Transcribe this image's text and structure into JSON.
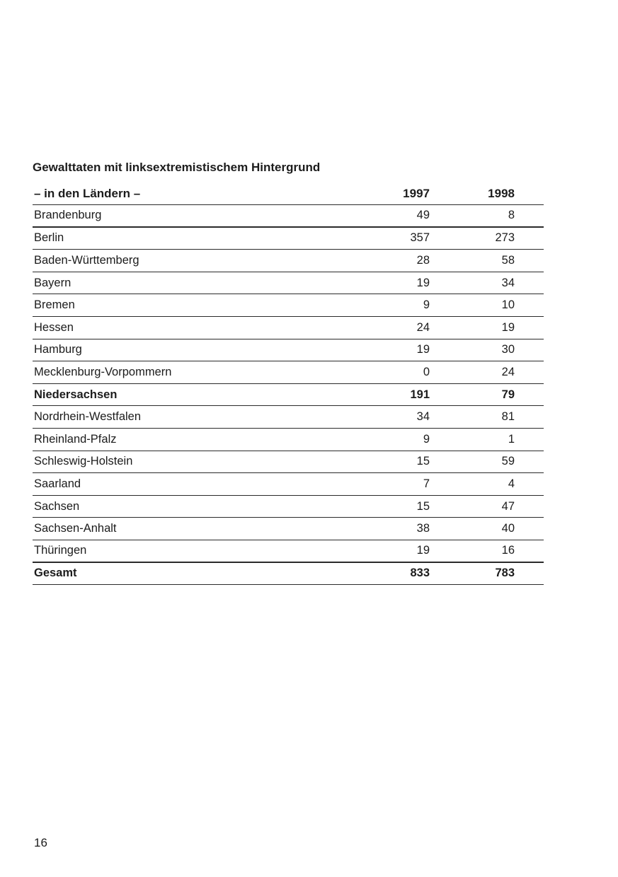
{
  "document": {
    "title_line1": "Gewalttaten mit linksextremistischem Hintergrund",
    "page_number": "16"
  },
  "table": {
    "header": {
      "label": "– in den Ländern –",
      "col_1997": "1997",
      "col_1998": "1998"
    },
    "rows": [
      {
        "state": "Brandenburg",
        "v1997": "49",
        "v1998": "8",
        "emphasis": false
      },
      {
        "state": "Berlin",
        "v1997": "357",
        "v1998": "273",
        "emphasis": false
      },
      {
        "state": "Baden-Württemberg",
        "v1997": "28",
        "v1998": "58",
        "emphasis": false
      },
      {
        "state": "Bayern",
        "v1997": "19",
        "v1998": "34",
        "emphasis": false
      },
      {
        "state": "Bremen",
        "v1997": "9",
        "v1998": "10",
        "emphasis": false
      },
      {
        "state": "Hessen",
        "v1997": "24",
        "v1998": "19",
        "emphasis": false
      },
      {
        "state": "Hamburg",
        "v1997": "19",
        "v1998": "30",
        "emphasis": false
      },
      {
        "state": "Mecklenburg-Vorpommern",
        "v1997": "0",
        "v1998": "24",
        "emphasis": false
      },
      {
        "state": "Niedersachsen",
        "v1997": "191",
        "v1998": "79",
        "emphasis": true
      },
      {
        "state": "Nordrhein-Westfalen",
        "v1997": "34",
        "v1998": "81",
        "emphasis": false
      },
      {
        "state": "Rheinland-Pfalz",
        "v1997": "9",
        "v1998": "1",
        "emphasis": false
      },
      {
        "state": "Schleswig-Holstein",
        "v1997": "15",
        "v1998": "59",
        "emphasis": false
      },
      {
        "state": "Saarland",
        "v1997": "7",
        "v1998": "4",
        "emphasis": false
      },
      {
        "state": "Sachsen",
        "v1997": "15",
        "v1998": "47",
        "emphasis": false
      },
      {
        "state": "Sachsen-Anhalt",
        "v1997": "38",
        "v1998": "40",
        "emphasis": false
      },
      {
        "state": "Thüringen",
        "v1997": "19",
        "v1998": "16",
        "emphasis": false
      },
      {
        "state": "Gesamt",
        "v1997": "833",
        "v1998": "783",
        "emphasis": true
      }
    ],
    "colors": {
      "text": "#1c1c1c",
      "rule": "#2a2a2a",
      "background": "#ffffff"
    }
  }
}
